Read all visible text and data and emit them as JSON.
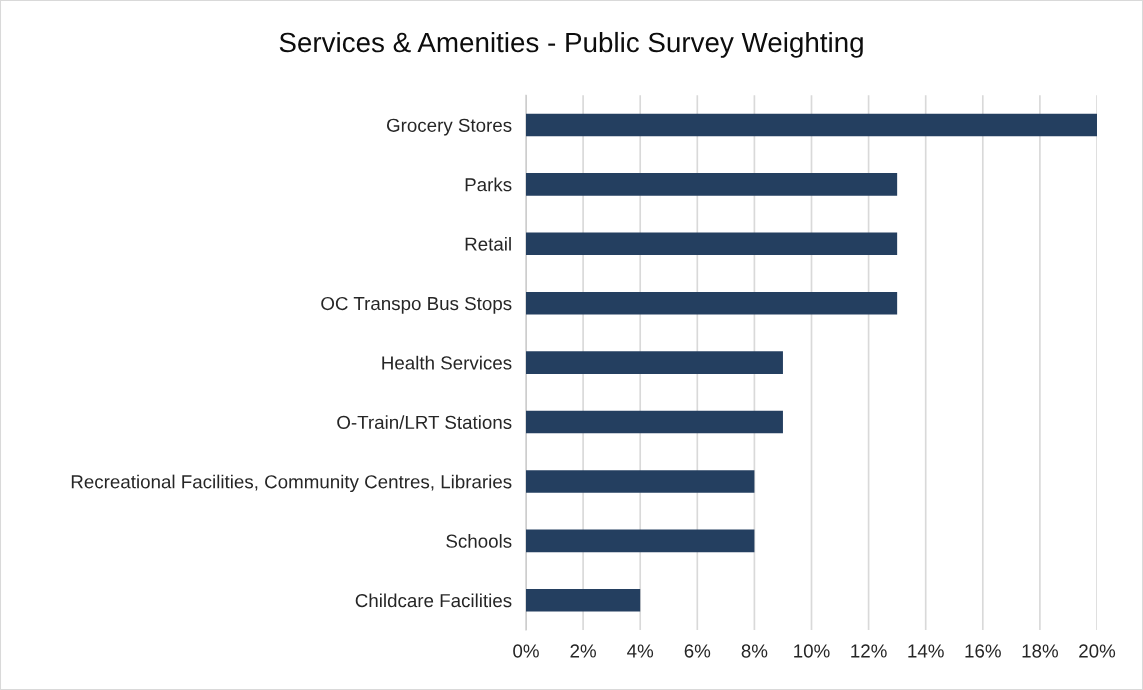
{
  "chart_data": {
    "type": "bar",
    "orientation": "horizontal",
    "title": "Services & Amenities - Public Survey Weighting",
    "categories": [
      "Grocery Stores",
      "Parks",
      "Retail",
      "OC Transpo Bus Stops",
      "Health Services",
      "O-Train/LRT Stations",
      "Recreational Facilities, Community Centres, Libraries",
      "Schools",
      "Childcare Facilities"
    ],
    "values": [
      20,
      13,
      13,
      13,
      9,
      9,
      8,
      8,
      4
    ],
    "color": "#243f60",
    "xlim": [
      0,
      20
    ],
    "xticks": [
      {
        "value": 0,
        "label": "0%"
      },
      {
        "value": 2,
        "label": "2%"
      },
      {
        "value": 4,
        "label": "4%"
      },
      {
        "value": 6,
        "label": "6%"
      },
      {
        "value": 8,
        "label": "8%"
      },
      {
        "value": 10,
        "label": "10%"
      },
      {
        "value": 12,
        "label": "12%"
      },
      {
        "value": 14,
        "label": "14%"
      },
      {
        "value": 16,
        "label": "16%"
      },
      {
        "value": 18,
        "label": "18%"
      },
      {
        "value": 20,
        "label": "20%"
      }
    ],
    "grid": "x"
  }
}
